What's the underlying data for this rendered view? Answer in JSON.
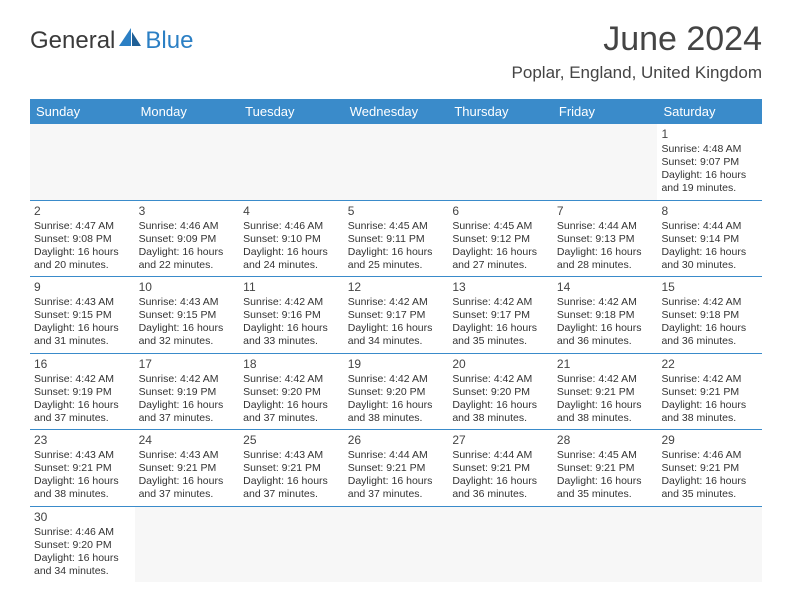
{
  "logo": {
    "general": "General",
    "blue": "Blue"
  },
  "title": "June 2024",
  "location": "Poplar, England, United Kingdom",
  "colors": {
    "header_bg": "#3a8bca",
    "header_text": "#ffffff",
    "text": "#333333",
    "logo_blue": "#2b7fc4",
    "border": "#3a8bca"
  },
  "day_names": [
    "Sunday",
    "Monday",
    "Tuesday",
    "Wednesday",
    "Thursday",
    "Friday",
    "Saturday"
  ],
  "weeks": [
    [
      null,
      null,
      null,
      null,
      null,
      null,
      {
        "n": "1",
        "sr": "4:48 AM",
        "ss": "9:07 PM",
        "dl": "16 hours and 19 minutes."
      }
    ],
    [
      {
        "n": "2",
        "sr": "4:47 AM",
        "ss": "9:08 PM",
        "dl": "16 hours and 20 minutes."
      },
      {
        "n": "3",
        "sr": "4:46 AM",
        "ss": "9:09 PM",
        "dl": "16 hours and 22 minutes."
      },
      {
        "n": "4",
        "sr": "4:46 AM",
        "ss": "9:10 PM",
        "dl": "16 hours and 24 minutes."
      },
      {
        "n": "5",
        "sr": "4:45 AM",
        "ss": "9:11 PM",
        "dl": "16 hours and 25 minutes."
      },
      {
        "n": "6",
        "sr": "4:45 AM",
        "ss": "9:12 PM",
        "dl": "16 hours and 27 minutes."
      },
      {
        "n": "7",
        "sr": "4:44 AM",
        "ss": "9:13 PM",
        "dl": "16 hours and 28 minutes."
      },
      {
        "n": "8",
        "sr": "4:44 AM",
        "ss": "9:14 PM",
        "dl": "16 hours and 30 minutes."
      }
    ],
    [
      {
        "n": "9",
        "sr": "4:43 AM",
        "ss": "9:15 PM",
        "dl": "16 hours and 31 minutes."
      },
      {
        "n": "10",
        "sr": "4:43 AM",
        "ss": "9:15 PM",
        "dl": "16 hours and 32 minutes."
      },
      {
        "n": "11",
        "sr": "4:42 AM",
        "ss": "9:16 PM",
        "dl": "16 hours and 33 minutes."
      },
      {
        "n": "12",
        "sr": "4:42 AM",
        "ss": "9:17 PM",
        "dl": "16 hours and 34 minutes."
      },
      {
        "n": "13",
        "sr": "4:42 AM",
        "ss": "9:17 PM",
        "dl": "16 hours and 35 minutes."
      },
      {
        "n": "14",
        "sr": "4:42 AM",
        "ss": "9:18 PM",
        "dl": "16 hours and 36 minutes."
      },
      {
        "n": "15",
        "sr": "4:42 AM",
        "ss": "9:18 PM",
        "dl": "16 hours and 36 minutes."
      }
    ],
    [
      {
        "n": "16",
        "sr": "4:42 AM",
        "ss": "9:19 PM",
        "dl": "16 hours and 37 minutes."
      },
      {
        "n": "17",
        "sr": "4:42 AM",
        "ss": "9:19 PM",
        "dl": "16 hours and 37 minutes."
      },
      {
        "n": "18",
        "sr": "4:42 AM",
        "ss": "9:20 PM",
        "dl": "16 hours and 37 minutes."
      },
      {
        "n": "19",
        "sr": "4:42 AM",
        "ss": "9:20 PM",
        "dl": "16 hours and 38 minutes."
      },
      {
        "n": "20",
        "sr": "4:42 AM",
        "ss": "9:20 PM",
        "dl": "16 hours and 38 minutes."
      },
      {
        "n": "21",
        "sr": "4:42 AM",
        "ss": "9:21 PM",
        "dl": "16 hours and 38 minutes."
      },
      {
        "n": "22",
        "sr": "4:42 AM",
        "ss": "9:21 PM",
        "dl": "16 hours and 38 minutes."
      }
    ],
    [
      {
        "n": "23",
        "sr": "4:43 AM",
        "ss": "9:21 PM",
        "dl": "16 hours and 38 minutes."
      },
      {
        "n": "24",
        "sr": "4:43 AM",
        "ss": "9:21 PM",
        "dl": "16 hours and 37 minutes."
      },
      {
        "n": "25",
        "sr": "4:43 AM",
        "ss": "9:21 PM",
        "dl": "16 hours and 37 minutes."
      },
      {
        "n": "26",
        "sr": "4:44 AM",
        "ss": "9:21 PM",
        "dl": "16 hours and 37 minutes."
      },
      {
        "n": "27",
        "sr": "4:44 AM",
        "ss": "9:21 PM",
        "dl": "16 hours and 36 minutes."
      },
      {
        "n": "28",
        "sr": "4:45 AM",
        "ss": "9:21 PM",
        "dl": "16 hours and 35 minutes."
      },
      {
        "n": "29",
        "sr": "4:46 AM",
        "ss": "9:21 PM",
        "dl": "16 hours and 35 minutes."
      }
    ],
    [
      {
        "n": "30",
        "sr": "4:46 AM",
        "ss": "9:20 PM",
        "dl": "16 hours and 34 minutes."
      },
      null,
      null,
      null,
      null,
      null,
      null
    ]
  ],
  "labels": {
    "sunrise": "Sunrise:",
    "sunset": "Sunset:",
    "daylight": "Daylight:"
  }
}
